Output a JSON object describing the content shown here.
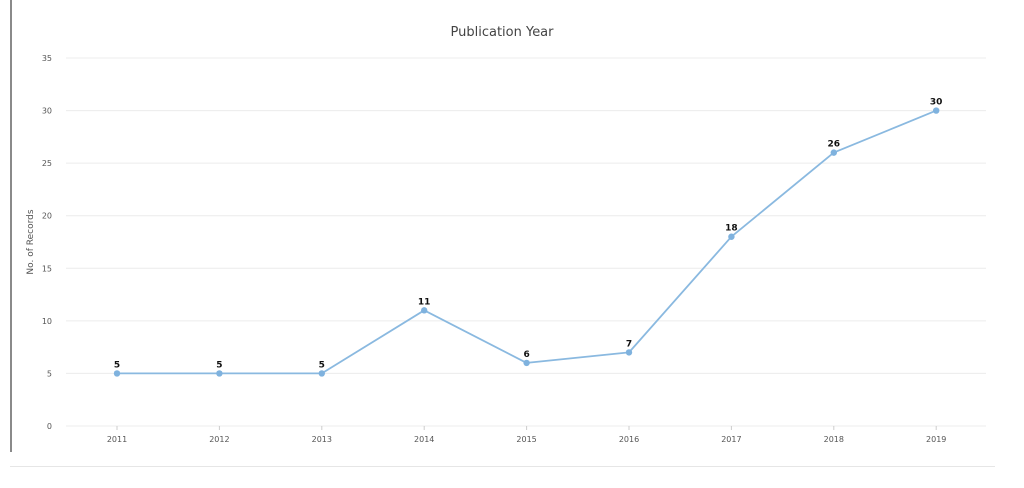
{
  "chart_data": {
    "type": "line",
    "title": "Publication Year",
    "xlabel": "",
    "ylabel": "No. of Records",
    "categories": [
      "2011",
      "2012",
      "2013",
      "2014",
      "2015",
      "2016",
      "2017",
      "2018",
      "2019"
    ],
    "series": [
      {
        "values": [
          5,
          5,
          5,
          11,
          6,
          7,
          18,
          26,
          30
        ]
      }
    ],
    "ylim": [
      0,
      35
    ],
    "yticks": [
      0,
      5,
      10,
      15,
      20,
      25,
      30,
      35
    ],
    "grid": true,
    "legend": "none",
    "colors": {
      "line": "#8ab9e0",
      "point": "#7fb2de",
      "grid": "#ececec"
    }
  }
}
